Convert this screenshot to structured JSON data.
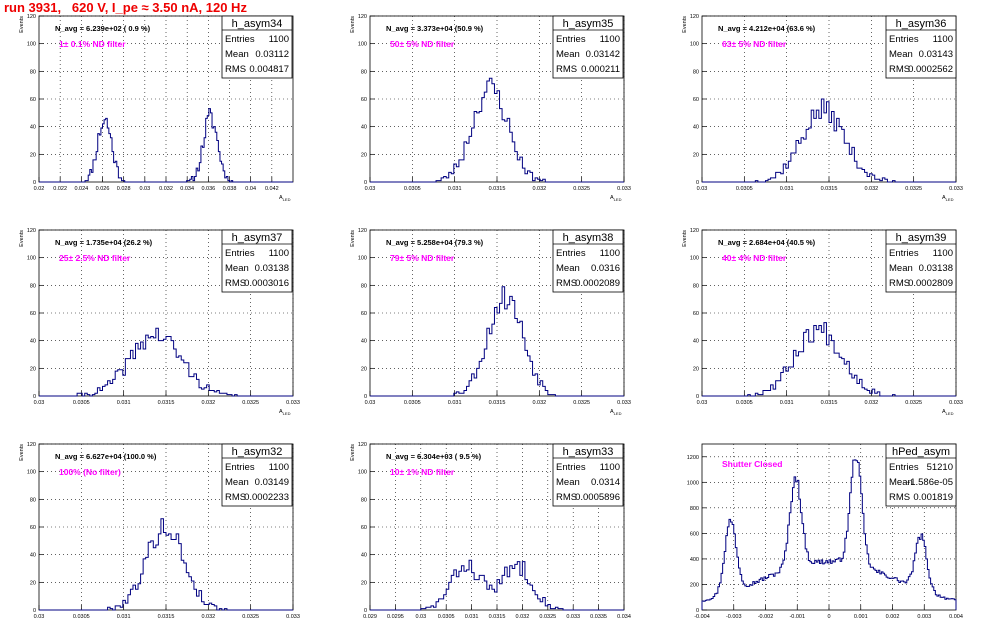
{
  "header": {
    "run_title": "run 3931,   620 V, I_pe ≈ 3.50 nA, 120 Hz"
  },
  "colors": {
    "hist_line": "#000080",
    "annotation": "#ff00ff",
    "title_red": "#ee0000",
    "grid": "#000000"
  },
  "stat_labels": {
    "entries": "Entries",
    "mean": "Mean",
    "rms": "RMS"
  },
  "chart_data": [
    {
      "type": "histogram",
      "name": "h_asym34",
      "title": "h_asym34",
      "navg": "N_avg = 6.239e+02 ( 0.9 %)",
      "note": "1± 0.1% ND filter",
      "stats": {
        "entries": "1100",
        "mean": "0.03112",
        "rms": "0.004817"
      },
      "ylabel": "Events",
      "xlabel": "A_LED",
      "xlim": [
        0.02,
        0.044
      ],
      "ylim": [
        0,
        120
      ],
      "xticks": [
        0.02,
        0.022,
        0.024,
        0.026,
        0.028,
        0.03,
        0.032,
        0.034,
        0.036,
        0.038,
        0.04,
        0.042
      ],
      "xticklabels": [
        "0.02",
        "0.022",
        "0.024",
        "0.026",
        "0.028",
        "0.03",
        "0.032",
        "0.034",
        "0.036",
        "0.038",
        "0.04",
        "0.042"
      ],
      "yticks": [
        0,
        20,
        40,
        60,
        80,
        100,
        120
      ],
      "yticklabels": [
        "0",
        "20",
        "40",
        "60",
        "80",
        "100",
        "120"
      ],
      "peaks": [
        {
          "mu": 0.0262,
          "sigma": 0.00068,
          "amp": 45
        },
        {
          "mu": 0.0362,
          "sigma": 0.00068,
          "amp": 47
        }
      ],
      "bins": 160,
      "seed": 11
    },
    {
      "type": "histogram",
      "name": "h_asym35",
      "title": "h_asym35",
      "navg": "N_avg = 3.373e+04 (50.9 %)",
      "note": "50± 5% ND filter",
      "stats": {
        "entries": "1100",
        "mean": "0.03142",
        "rms": "0.000211"
      },
      "ylabel": "Events",
      "xlabel": "A_LED",
      "xlim": [
        0.03,
        0.033
      ],
      "ylim": [
        0,
        120
      ],
      "xticks": [
        0.03,
        0.0305,
        0.031,
        0.0315,
        0.032,
        0.0325,
        0.033
      ],
      "xticklabels": [
        "0.03",
        "0.0305",
        "0.031",
        "0.0315",
        "0.032",
        "0.0325",
        "0.033"
      ],
      "yticks": [
        0,
        20,
        40,
        60,
        80,
        100,
        120
      ],
      "yticklabels": [
        "0",
        "20",
        "40",
        "60",
        "80",
        "100",
        "120"
      ],
      "peaks": [
        {
          "mu": 0.03142,
          "sigma": 0.000211,
          "amp": 68
        }
      ],
      "bins": 100,
      "seed": 23
    },
    {
      "type": "histogram",
      "name": "h_asym36",
      "title": "h_asym36",
      "navg": "N_avg = 4.212e+04 (63.6 %)",
      "note": "63± 5% ND filter",
      "stats": {
        "entries": "1100",
        "mean": "0.03143",
        "rms": "0.0002562"
      },
      "ylabel": "Events",
      "xlabel": "A_LED",
      "xlim": [
        0.03,
        0.033
      ],
      "ylim": [
        0,
        120
      ],
      "xticks": [
        0.03,
        0.0305,
        0.031,
        0.0315,
        0.032,
        0.0325,
        0.033
      ],
      "xticklabels": [
        "0.03",
        "0.0305",
        "0.031",
        "0.0315",
        "0.032",
        "0.0325",
        "0.033"
      ],
      "yticks": [
        0,
        20,
        40,
        60,
        80,
        100,
        120
      ],
      "yticklabels": [
        "0",
        "20",
        "40",
        "60",
        "80",
        "100",
        "120"
      ],
      "peaks": [
        {
          "mu": 0.03143,
          "sigma": 0.000256,
          "amp": 52
        }
      ],
      "bins": 100,
      "seed": 37
    },
    {
      "type": "histogram",
      "name": "h_asym37",
      "title": "h_asym37",
      "navg": "N_avg = 1.735e+04 (26.2 %)",
      "note": "25± 2.5% ND filter",
      "stats": {
        "entries": "1100",
        "mean": "0.03138",
        "rms": "0.0003016"
      },
      "ylabel": "Events",
      "xlabel": "A_LED",
      "xlim": [
        0.03,
        0.033
      ],
      "ylim": [
        0,
        120
      ],
      "xticks": [
        0.03,
        0.0305,
        0.031,
        0.0315,
        0.032,
        0.0325,
        0.033
      ],
      "xticklabels": [
        "0.03",
        "0.0305",
        "0.031",
        "0.0315",
        "0.032",
        "0.0325",
        "0.033"
      ],
      "yticks": [
        0,
        20,
        40,
        60,
        80,
        100,
        120
      ],
      "yticklabels": [
        "0",
        "20",
        "40",
        "60",
        "80",
        "100",
        "120"
      ],
      "peaks": [
        {
          "mu": 0.03138,
          "sigma": 0.000302,
          "amp": 44
        }
      ],
      "bins": 100,
      "seed": 41
    },
    {
      "type": "histogram",
      "name": "h_asym38",
      "title": "h_asym38",
      "navg": "N_avg = 5.258e+04 (79.3 %)",
      "note": "79± 5% ND filter",
      "stats": {
        "entries": "1100",
        "mean": "0.0316",
        "rms": "0.0002089"
      },
      "ylabel": "Events",
      "xlabel": "A_LED",
      "xlim": [
        0.03,
        0.033
      ],
      "ylim": [
        0,
        120
      ],
      "xticks": [
        0.03,
        0.0305,
        0.031,
        0.0315,
        0.032,
        0.0325,
        0.033
      ],
      "xticklabels": [
        "0.03",
        "0.0305",
        "0.031",
        "0.0315",
        "0.032",
        "0.0325",
        "0.033"
      ],
      "yticks": [
        0,
        20,
        40,
        60,
        80,
        100,
        120
      ],
      "yticklabels": [
        "0",
        "20",
        "40",
        "60",
        "80",
        "100",
        "120"
      ],
      "peaks": [
        {
          "mu": 0.0316,
          "sigma": 0.000209,
          "amp": 72
        }
      ],
      "bins": 100,
      "seed": 53
    },
    {
      "type": "histogram",
      "name": "h_asym39",
      "title": "h_asym39",
      "navg": "N_avg = 2.684e+04 (40.5 %)",
      "note": "40± 4% ND filter",
      "stats": {
        "entries": "1100",
        "mean": "0.03138",
        "rms": "0.0002809"
      },
      "ylabel": "Events",
      "xlabel": "A_LED",
      "xlim": [
        0.03,
        0.033
      ],
      "ylim": [
        0,
        120
      ],
      "xticks": [
        0.03,
        0.0305,
        0.031,
        0.0315,
        0.032,
        0.0325,
        0.033
      ],
      "xticklabels": [
        "0.03",
        "0.0305",
        "0.031",
        "0.0315",
        "0.032",
        "0.0325",
        "0.033"
      ],
      "yticks": [
        0,
        20,
        40,
        60,
        80,
        100,
        120
      ],
      "yticklabels": [
        "0",
        "20",
        "40",
        "60",
        "80",
        "100",
        "120"
      ],
      "peaks": [
        {
          "mu": 0.03138,
          "sigma": 0.000281,
          "amp": 48
        }
      ],
      "bins": 100,
      "seed": 67
    },
    {
      "type": "histogram",
      "name": "h_asym32",
      "title": "h_asym32",
      "navg": "N_avg = 6.627e+04 (100.0 %)",
      "note": "100% (No filter)",
      "stats": {
        "entries": "1100",
        "mean": "0.03149",
        "rms": "0.0002233"
      },
      "ylabel": "Events",
      "xlabel": "A_LED",
      "xlim": [
        0.03,
        0.033
      ],
      "ylim": [
        0,
        120
      ],
      "xticks": [
        0.03,
        0.0305,
        0.031,
        0.0315,
        0.032,
        0.0325,
        0.033
      ],
      "xticklabels": [
        "0.03",
        "0.0305",
        "0.031",
        "0.0315",
        "0.032",
        "0.0325",
        "0.033"
      ],
      "yticks": [
        0,
        20,
        40,
        60,
        80,
        100,
        120
      ],
      "yticklabels": [
        "0",
        "20",
        "40",
        "60",
        "80",
        "100",
        "120"
      ],
      "peaks": [
        {
          "mu": 0.03149,
          "sigma": 0.000223,
          "amp": 60
        }
      ],
      "bins": 100,
      "seed": 79
    },
    {
      "type": "histogram",
      "name": "h_asym33",
      "title": "h_asym33",
      "navg": "N_avg = 6.304e+03 ( 9.5 %)",
      "note": "10± 1% ND filter",
      "stats": {
        "entries": "1100",
        "mean": "0.0314",
        "rms": "0.0005896"
      },
      "ylabel": "Events",
      "xlabel": "A_LED",
      "xlim": [
        0.029,
        0.034
      ],
      "ylim": [
        0,
        120
      ],
      "xticks": [
        0.029,
        0.0295,
        0.03,
        0.0305,
        0.031,
        0.0315,
        0.032,
        0.0325,
        0.033,
        0.0335,
        0.034
      ],
      "xticklabels": [
        "0.029",
        "0.0295",
        "0.03",
        "0.0305",
        "0.031",
        "0.0315",
        "0.032",
        "0.0325",
        "0.033",
        "0.0335",
        "0.034"
      ],
      "yticks": [
        0,
        20,
        40,
        60,
        80,
        100,
        120
      ],
      "yticklabels": [
        "0",
        "20",
        "40",
        "60",
        "80",
        "100",
        "120"
      ],
      "peaks": [
        {
          "mu": 0.0309,
          "sigma": 0.0003,
          "amp": 32
        },
        {
          "mu": 0.0319,
          "sigma": 0.0003,
          "amp": 32
        }
      ],
      "bins": 100,
      "seed": 83
    },
    {
      "type": "histogram",
      "name": "hPed_asym",
      "title": "hPed_asym",
      "navg": "",
      "note": "Shutter Closed",
      "stats": {
        "entries": "51210",
        "mean": "-1.586e-05",
        "rms": "0.001819"
      },
      "ylabel": "",
      "xlabel": "",
      "xlim": [
        -0.004,
        0.004
      ],
      "ylim": [
        0,
        1300
      ],
      "xticks": [
        -0.004,
        -0.003,
        -0.002,
        -0.001,
        0,
        0.001,
        0.002,
        0.003,
        0.004
      ],
      "xticklabels": [
        "-0.004",
        "-0.003",
        "-0.002",
        "-0.001",
        "0",
        "0.001",
        "0.002",
        "0.003",
        "0.004"
      ],
      "yticks": [
        0,
        200,
        400,
        600,
        800,
        1000,
        1200
      ],
      "yticklabels": [
        "0",
        "200",
        "400",
        "600",
        "800",
        "1000",
        "1200"
      ],
      "peaks": [
        {
          "mu": -0.0031,
          "sigma": 0.00018,
          "amp": 560
        },
        {
          "mu": -0.00105,
          "sigma": 0.00018,
          "amp": 700
        },
        {
          "mu": 0.00085,
          "sigma": 0.00018,
          "amp": 860
        },
        {
          "mu": 0.0029,
          "sigma": 0.00018,
          "amp": 420
        },
        {
          "mu": 0.0,
          "sigma": 0.0022,
          "amp": 380
        }
      ],
      "bins": 160,
      "seed": 97
    }
  ]
}
